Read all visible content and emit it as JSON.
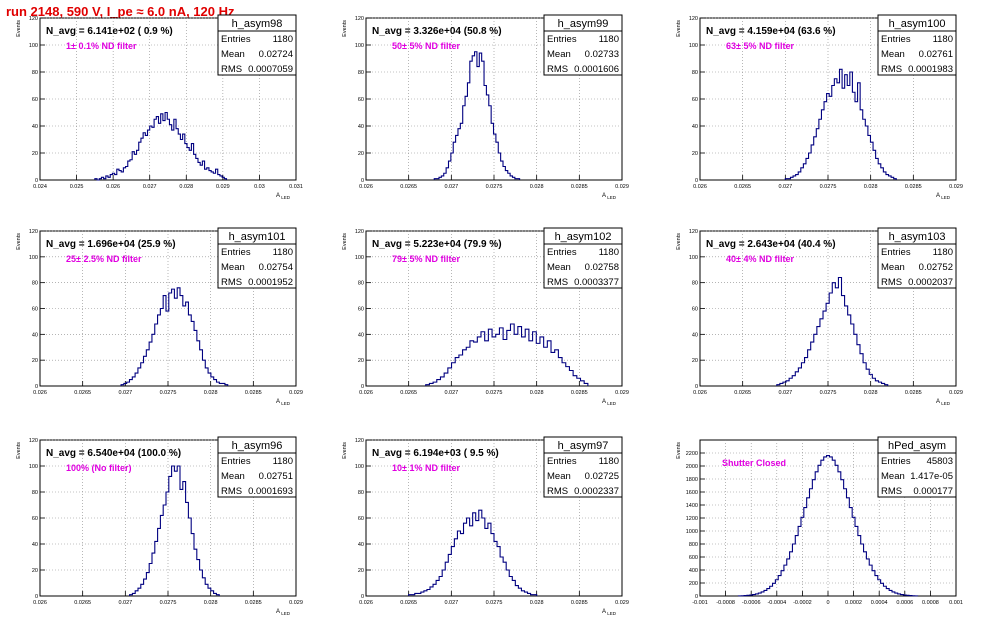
{
  "run_title": "run 2148,   590 V, I_pe ≈ 6.0 nA, 120 Hz",
  "stats_labels": {
    "entries": "Entries",
    "mean": "Mean",
    "rms": "RMS"
  },
  "colors": {
    "hist_line": "#000080",
    "annotation": "#e000e0",
    "title": "#e00000",
    "grid": "#888888"
  },
  "chart_data": [
    {
      "type": "histogram",
      "name": "h_asym98",
      "navg": "N_avg = 6.141e+02 ( 0.9 %)",
      "filter": "1± 0.1% ND filter",
      "entries": "1180",
      "mean": "0.02724",
      "rms": "0.0007059",
      "ylabel": "Events",
      "xlabel": "A_LED",
      "grid": true,
      "xlim": [
        0.024,
        0.031
      ],
      "ylim": [
        0,
        120
      ],
      "xticks": [
        0.024,
        0.025,
        0.026,
        0.027,
        0.028,
        0.029,
        0.03,
        0.031
      ],
      "xtick_labels": [
        "0.024",
        "0.025",
        "0.026",
        "0.027",
        "0.028",
        "0.029",
        "0.03",
        "0.031"
      ],
      "yticks": [
        0,
        20,
        40,
        60,
        80,
        100,
        120
      ],
      "ytick_labels": [
        "0",
        "20",
        "40",
        "60",
        "80",
        "100",
        "120"
      ],
      "bin_range": [
        0.0255,
        0.0291
      ],
      "values": [
        1,
        0,
        1,
        2,
        1,
        3,
        2,
        4,
        5,
        4,
        8,
        7,
        6,
        9,
        10,
        14,
        15,
        21,
        19,
        22,
        28,
        31,
        35,
        33,
        37,
        40,
        39,
        45,
        47,
        42,
        49,
        44,
        50,
        45,
        41,
        37,
        45,
        38,
        34,
        30,
        34,
        27,
        24,
        22,
        27,
        19,
        16,
        13,
        11,
        14,
        8,
        9,
        7,
        6,
        5,
        8,
        4,
        3,
        2,
        1
      ]
    },
    {
      "type": "histogram",
      "name": "h_asym99",
      "navg": "N_avg = 3.326e+04 (50.8 %)",
      "filter": "50± 5% ND filter",
      "entries": "1180",
      "mean": "0.02733",
      "rms": "0.0001606",
      "ylabel": "Events",
      "xlabel": "A_LED",
      "grid": true,
      "xlim": [
        0.026,
        0.029
      ],
      "ylim": [
        0,
        120
      ],
      "xticks": [
        0.026,
        0.0265,
        0.027,
        0.0275,
        0.028,
        0.0285,
        0.029
      ],
      "xtick_labels": [
        "0.026",
        "0.0265",
        "0.027",
        "0.0275",
        "0.028",
        "0.0285",
        "0.029"
      ],
      "yticks": [
        0,
        20,
        40,
        60,
        80,
        100,
        120
      ],
      "ytick_labels": [
        "0",
        "20",
        "40",
        "60",
        "80",
        "100",
        "120"
      ],
      "bin_range": [
        0.0268,
        0.0278
      ],
      "values": [
        1,
        1,
        2,
        3,
        5,
        9,
        14,
        20,
        28,
        33,
        38,
        42,
        55,
        62,
        72,
        88,
        92,
        95,
        84,
        94,
        88,
        70,
        63,
        55,
        42,
        34,
        28,
        20,
        14,
        10,
        7,
        5,
        3,
        2,
        1,
        1
      ]
    },
    {
      "type": "histogram",
      "name": "h_asym100",
      "navg": "N_avg = 4.159e+04 (63.6 %)",
      "filter": "63± 5% ND filter",
      "entries": "1180",
      "mean": "0.02761",
      "rms": "0.0001983",
      "ylabel": "Events",
      "xlabel": "A_LED",
      "grid": true,
      "xlim": [
        0.026,
        0.029
      ],
      "ylim": [
        0,
        120
      ],
      "xticks": [
        0.026,
        0.0265,
        0.027,
        0.0275,
        0.028,
        0.0285,
        0.029
      ],
      "xtick_labels": [
        "0.026",
        "0.0265",
        "0.027",
        "0.0275",
        "0.028",
        "0.0285",
        "0.029"
      ],
      "yticks": [
        0,
        20,
        40,
        60,
        80,
        100,
        120
      ],
      "ytick_labels": [
        "0",
        "20",
        "40",
        "60",
        "80",
        "100",
        "120"
      ],
      "bin_range": [
        0.027,
        0.0283
      ],
      "values": [
        1,
        1,
        2,
        3,
        4,
        6,
        9,
        12,
        16,
        20,
        26,
        32,
        38,
        45,
        52,
        58,
        64,
        62,
        70,
        75,
        72,
        82,
        68,
        78,
        70,
        80,
        65,
        58,
        72,
        52,
        45,
        40,
        33,
        28,
        22,
        16,
        12,
        9,
        6,
        4,
        3,
        2,
        1
      ]
    },
    {
      "type": "histogram",
      "name": "h_asym101",
      "navg": "N_avg = 1.696e+04 (25.9 %)",
      "filter": "25± 2.5% ND filter",
      "entries": "1180",
      "mean": "0.02754",
      "rms": "0.0001952",
      "ylabel": "Events",
      "xlabel": "A_LED",
      "grid": true,
      "xlim": [
        0.026,
        0.029
      ],
      "ylim": [
        0,
        120
      ],
      "xticks": [
        0.026,
        0.0265,
        0.027,
        0.0275,
        0.028,
        0.0285,
        0.029
      ],
      "xtick_labels": [
        "0.026",
        "0.0265",
        "0.027",
        "0.0275",
        "0.028",
        "0.0285",
        "0.029"
      ],
      "yticks": [
        0,
        20,
        40,
        60,
        80,
        100,
        120
      ],
      "ytick_labels": [
        "0",
        "20",
        "40",
        "60",
        "80",
        "100",
        "120"
      ],
      "bin_range": [
        0.02695,
        0.0282
      ],
      "values": [
        1,
        2,
        3,
        5,
        7,
        10,
        14,
        18,
        23,
        28,
        34,
        40,
        48,
        55,
        60,
        70,
        58,
        72,
        75,
        68,
        76,
        70,
        62,
        65,
        55,
        50,
        43,
        35,
        28,
        20,
        14,
        10,
        7,
        5,
        3,
        2,
        2,
        1
      ]
    },
    {
      "type": "histogram",
      "name": "h_asym102",
      "navg": "N_avg = 5.223e+04 (79.9 %)",
      "filter": "79± 5% ND filter",
      "entries": "1180",
      "mean": "0.02758",
      "rms": "0.0003377",
      "ylabel": "Events",
      "xlabel": "A_LED",
      "grid": true,
      "xlim": [
        0.026,
        0.029
      ],
      "ylim": [
        0,
        120
      ],
      "xticks": [
        0.026,
        0.0265,
        0.027,
        0.0275,
        0.028,
        0.0285,
        0.029
      ],
      "xtick_labels": [
        "0.026",
        "0.0265",
        "0.027",
        "0.0275",
        "0.028",
        "0.0285",
        "0.029"
      ],
      "yticks": [
        0,
        20,
        40,
        60,
        80,
        100,
        120
      ],
      "ytick_labels": [
        "0",
        "20",
        "40",
        "60",
        "80",
        "100",
        "120"
      ],
      "bin_range": [
        0.0267,
        0.0286
      ],
      "values": [
        1,
        2,
        3,
        5,
        7,
        10,
        14,
        18,
        22,
        24,
        28,
        30,
        35,
        34,
        38,
        42,
        35,
        44,
        38,
        40,
        45,
        36,
        43,
        48,
        40,
        46,
        38,
        44,
        35,
        42,
        33,
        38,
        30,
        35,
        26,
        28,
        22,
        18,
        15,
        12,
        8,
        6,
        4,
        2
      ]
    },
    {
      "type": "histogram",
      "name": "h_asym103",
      "navg": "N_avg = 2.643e+04 (40.4 %)",
      "filter": "40± 4% ND filter",
      "entries": "1180",
      "mean": "0.02752",
      "rms": "0.0002037",
      "ylabel": "Events",
      "xlabel": "A_LED",
      "grid": true,
      "xlim": [
        0.026,
        0.029
      ],
      "ylim": [
        0,
        120
      ],
      "xticks": [
        0.026,
        0.0265,
        0.027,
        0.0275,
        0.028,
        0.0285,
        0.029
      ],
      "xtick_labels": [
        "0.026",
        "0.0265",
        "0.027",
        "0.0275",
        "0.028",
        "0.0285",
        "0.029"
      ],
      "yticks": [
        0,
        20,
        40,
        60,
        80,
        100,
        120
      ],
      "ytick_labels": [
        "0",
        "20",
        "40",
        "60",
        "80",
        "100",
        "120"
      ],
      "bin_range": [
        0.0269,
        0.0282
      ],
      "values": [
        1,
        2,
        3,
        4,
        6,
        8,
        11,
        14,
        18,
        22,
        28,
        34,
        40,
        46,
        52,
        58,
        64,
        72,
        80,
        76,
        84,
        70,
        62,
        55,
        48,
        40,
        32,
        25,
        18,
        13,
        9,
        6,
        4,
        3,
        2,
        1
      ]
    },
    {
      "type": "histogram",
      "name": "h_asym96",
      "navg": "N_avg = 6.540e+04 (100.0 %)",
      "filter": "100% (No filter)",
      "entries": "1180",
      "mean": "0.02751",
      "rms": "0.0001693",
      "ylabel": "Events",
      "xlabel": "A_LED",
      "grid": true,
      "xlim": [
        0.026,
        0.029
      ],
      "ylim": [
        0,
        120
      ],
      "xticks": [
        0.026,
        0.0265,
        0.027,
        0.0275,
        0.028,
        0.0285,
        0.029
      ],
      "xtick_labels": [
        "0.026",
        "0.0265",
        "0.027",
        "0.0275",
        "0.028",
        "0.0285",
        "0.029"
      ],
      "yticks": [
        0,
        20,
        40,
        60,
        80,
        100,
        120
      ],
      "ytick_labels": [
        "0",
        "20",
        "40",
        "60",
        "80",
        "100",
        "120"
      ],
      "bin_range": [
        0.02705,
        0.0281
      ],
      "values": [
        1,
        2,
        4,
        6,
        9,
        13,
        18,
        25,
        33,
        42,
        52,
        62,
        70,
        80,
        92,
        100,
        96,
        100,
        82,
        88,
        72,
        60,
        48,
        36,
        28,
        20,
        14,
        9,
        6,
        4,
        2,
        1
      ]
    },
    {
      "type": "histogram",
      "name": "h_asym97",
      "navg": "N_avg = 6.194e+03 ( 9.5 %)",
      "filter": "10± 1% ND filter",
      "entries": "1180",
      "mean": "0.02725",
      "rms": "0.0002337",
      "ylabel": "Events",
      "xlabel": "A_LED",
      "grid": true,
      "xlim": [
        0.026,
        0.029
      ],
      "ylim": [
        0,
        120
      ],
      "xticks": [
        0.026,
        0.0265,
        0.027,
        0.0275,
        0.028,
        0.0285,
        0.029
      ],
      "xtick_labels": [
        "0.026",
        "0.0265",
        "0.027",
        "0.0275",
        "0.028",
        "0.0285",
        "0.029"
      ],
      "yticks": [
        0,
        20,
        40,
        60,
        80,
        100,
        120
      ],
      "ytick_labels": [
        "0",
        "20",
        "40",
        "60",
        "80",
        "100",
        "120"
      ],
      "bin_range": [
        0.0265,
        0.028
      ],
      "values": [
        1,
        1,
        2,
        2,
        3,
        4,
        5,
        7,
        9,
        12,
        15,
        20,
        26,
        32,
        38,
        44,
        50,
        48,
        56,
        60,
        54,
        64,
        58,
        66,
        60,
        52,
        56,
        48,
        42,
        38,
        30,
        26,
        20,
        15,
        12,
        8,
        6,
        4,
        3,
        2,
        1,
        1
      ]
    },
    {
      "type": "histogram",
      "name": "hPed_asym",
      "navg": "",
      "filter": "Shutter Closed",
      "entries": "45803",
      "mean": "1.417e-05",
      "rms": "0.000177",
      "ylabel": "Events",
      "xlabel": "",
      "grid": true,
      "xlim": [
        -0.001,
        0.001
      ],
      "ylim": [
        0,
        2400
      ],
      "xticks": [
        -0.001,
        -0.0008,
        -0.0006,
        -0.0004,
        -0.0002,
        0,
        0.0002,
        0.0004,
        0.0006,
        0.0008,
        0.001
      ],
      "xtick_labels": [
        "-0.001",
        "-0.0008",
        "-0.0006",
        "-0.0004",
        "-0.0002",
        "0",
        "0.0002",
        "0.0004",
        "0.0006",
        "0.0008",
        "0.001"
      ],
      "yticks": [
        0,
        200,
        400,
        600,
        800,
        1000,
        1200,
        1400,
        1600,
        1800,
        2000,
        2200
      ],
      "ytick_labels": [
        "0",
        "200",
        "400",
        "600",
        "800",
        "1000",
        "1200",
        "1400",
        "1600",
        "1800",
        "2000",
        "2200"
      ],
      "bin_range": [
        -0.0007,
        0.0007
      ],
      "values": [
        2,
        4,
        6,
        10,
        15,
        22,
        32,
        45,
        62,
        85,
        115,
        150,
        195,
        250,
        315,
        390,
        475,
        570,
        680,
        800,
        930,
        1070,
        1210,
        1360,
        1510,
        1650,
        1790,
        1910,
        2010,
        2090,
        2140,
        2160,
        2140,
        2090,
        2010,
        1910,
        1790,
        1650,
        1510,
        1360,
        1210,
        1070,
        930,
        800,
        680,
        570,
        475,
        390,
        315,
        250,
        195,
        150,
        115,
        85,
        62,
        45,
        32,
        22,
        15,
        10,
        6,
        4,
        2
      ]
    }
  ]
}
